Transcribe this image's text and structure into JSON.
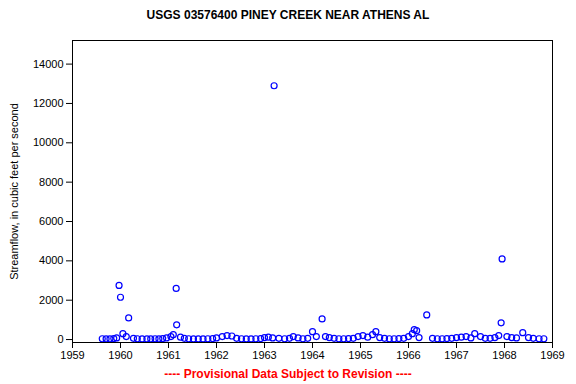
{
  "chart_data": {
    "type": "scatter",
    "title": "USGS 03576400 PINEY CREEK NEAR ATHENS AL",
    "caption": "---- Provisional Data Subject to Revision ----",
    "y_label": "Streamflow, in cubic feet per second",
    "color": "#0000ff",
    "marker": "open_circle",
    "grid": false,
    "xlim": [
      1959,
      1969
    ],
    "xticks": [
      1959,
      1960,
      1961,
      1962,
      1963,
      1964,
      1965,
      1966,
      1967,
      1968,
      1969
    ],
    "ylim": [
      -150,
      15200
    ],
    "yticks": [
      0,
      2000,
      4000,
      6000,
      8000,
      10000,
      12000,
      14000
    ],
    "x": [
      1959.62,
      1959.7,
      1959.78,
      1959.86,
      1959.92,
      1959.97,
      1960.0,
      1960.05,
      1960.12,
      1960.17,
      1960.27,
      1960.35,
      1960.45,
      1960.55,
      1960.63,
      1960.72,
      1960.8,
      1960.88,
      1960.96,
      1961.05,
      1961.1,
      1961.16,
      1961.17,
      1961.25,
      1961.33,
      1961.42,
      1961.52,
      1961.62,
      1961.72,
      1961.82,
      1961.92,
      1962.0,
      1962.12,
      1962.22,
      1962.32,
      1962.42,
      1962.52,
      1962.62,
      1962.72,
      1962.82,
      1962.92,
      1963.0,
      1963.08,
      1963.17,
      1963.2,
      1963.3,
      1963.42,
      1963.52,
      1963.6,
      1963.7,
      1963.8,
      1963.9,
      1964.0,
      1964.08,
      1964.2,
      1964.27,
      1964.35,
      1964.45,
      1964.55,
      1964.65,
      1964.75,
      1964.85,
      1964.95,
      1965.05,
      1965.15,
      1965.25,
      1965.32,
      1965.4,
      1965.5,
      1965.6,
      1965.7,
      1965.8,
      1965.9,
      1966.0,
      1966.08,
      1966.12,
      1966.17,
      1966.22,
      1966.38,
      1966.5,
      1966.6,
      1966.7,
      1966.8,
      1966.9,
      1967.0,
      1967.1,
      1967.2,
      1967.3,
      1967.38,
      1967.5,
      1967.6,
      1967.7,
      1967.8,
      1967.88,
      1967.93,
      1967.95,
      1968.05,
      1968.15,
      1968.25,
      1968.38,
      1968.5,
      1968.6,
      1968.72,
      1968.82
    ],
    "values": [
      40,
      30,
      30,
      50,
      80,
      2750,
      2150,
      300,
      150,
      1100,
      60,
      40,
      30,
      30,
      30,
      40,
      30,
      50,
      80,
      150,
      250,
      2600,
      750,
      120,
      60,
      40,
      30,
      30,
      30,
      40,
      50,
      80,
      150,
      200,
      180,
      60,
      40,
      30,
      30,
      40,
      50,
      100,
      120,
      80,
      12900,
      60,
      40,
      60,
      150,
      80,
      40,
      60,
      400,
      150,
      1050,
      150,
      100,
      60,
      40,
      40,
      50,
      60,
      150,
      200,
      120,
      250,
      400,
      100,
      60,
      40,
      40,
      50,
      60,
      150,
      300,
      500,
      450,
      100,
      1250,
      60,
      40,
      40,
      50,
      60,
      100,
      120,
      150,
      80,
      300,
      150,
      60,
      60,
      100,
      200,
      850,
      4100,
      150,
      100,
      80,
      350,
      100,
      60,
      40,
      40
    ]
  }
}
